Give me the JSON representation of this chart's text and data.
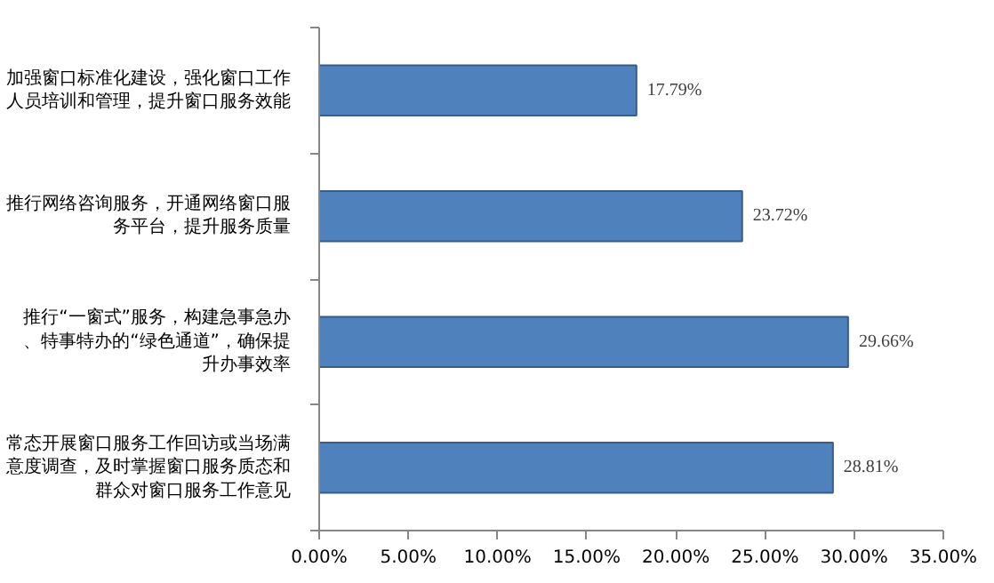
{
  "chart_data": {
    "type": "bar",
    "orientation": "horizontal",
    "categories": [
      "加强窗口标准化建设，强化窗口工作人员培训和管理，提升窗口服务效能",
      "推行网络咨询服务，开通网络窗口服务平台，提升服务质量",
      "推行“一窗式”服务，构建急事急办、特事特办的“绿色通道”，确保提升办事效率",
      "常态开展窗口服务工作回访或当场满意度调查，及时掌握窗口服务质态和群众对窗口服务工作意见"
    ],
    "values": [
      17.79,
      23.72,
      29.66,
      28.81
    ],
    "value_labels": [
      "17.79%",
      "23.72%",
      "29.66%",
      "28.81%"
    ],
    "color": "#4f81bd",
    "xlim": [
      0,
      35
    ],
    "xticks": [
      {
        "value": 0,
        "label": "0.00%"
      },
      {
        "value": 5,
        "label": "5.00%"
      },
      {
        "value": 10,
        "label": "10.00%"
      },
      {
        "value": 15,
        "label": "15.00%"
      },
      {
        "value": 20,
        "label": "20.00%"
      },
      {
        "value": 25,
        "label": "25.00%"
      },
      {
        "value": 30,
        "label": "30.00%"
      },
      {
        "value": 35,
        "label": "35.00%"
      }
    ],
    "grid": false
  }
}
